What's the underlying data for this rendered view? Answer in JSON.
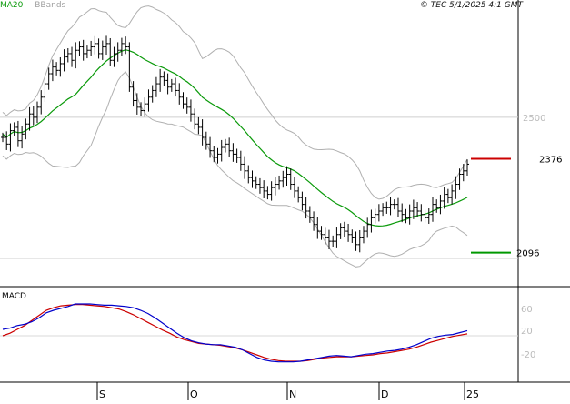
{
  "header": {
    "legend_ma": "MA20",
    "legend_bb": "BBands",
    "copyright": "© TEC 5/1/2025 4:1 GMT"
  },
  "levels": {
    "resistance_label": "2376",
    "support_label": "2096",
    "resistance_color": "#cc0000",
    "support_color": "#009900"
  },
  "colors": {
    "ma": "#0a9a0a",
    "bbands": "#b0b0b0",
    "price": "#000000",
    "macd": "#0000cc",
    "signal": "#cc0000"
  },
  "chart_data": [
    {
      "type": "ohlc",
      "title": "",
      "y_ticks": [
        "2500"
      ],
      "x_ticks": [
        "S",
        "O",
        "N",
        "D",
        "25"
      ],
      "levels": [
        2376,
        2096
      ],
      "series_names": [
        "MA20",
        "BBands"
      ],
      "close": [
        2440,
        2420,
        2460,
        2470,
        2430,
        2450,
        2480,
        2510,
        2500,
        2530,
        2560,
        2600,
        2630,
        2650,
        2640,
        2660,
        2680,
        2690,
        2670,
        2700,
        2710,
        2690,
        2700,
        2710,
        2720,
        2690,
        2710,
        2720,
        2670,
        2690,
        2700,
        2720,
        2710,
        2590,
        2550,
        2530,
        2520,
        2540,
        2560,
        2580,
        2600,
        2620,
        2610,
        2590,
        2600,
        2580,
        2560,
        2540,
        2530,
        2510,
        2480,
        2470,
        2440,
        2420,
        2400,
        2380,
        2390,
        2410,
        2420,
        2400,
        2390,
        2380,
        2360,
        2340,
        2320,
        2310,
        2300,
        2290,
        2280,
        2270,
        2290,
        2300,
        2310,
        2320,
        2330,
        2300,
        2280,
        2260,
        2240,
        2220,
        2200,
        2180,
        2160,
        2150,
        2140,
        2130,
        2130,
        2150,
        2170,
        2160,
        2150,
        2140,
        2120,
        2140,
        2160,
        2180,
        2200,
        2210,
        2220,
        2230,
        2230,
        2240,
        2240,
        2220,
        2210,
        2200,
        2220,
        2230,
        2220,
        2210,
        2200,
        2210,
        2240,
        2230,
        2250,
        2270,
        2260,
        2280,
        2300,
        2330,
        2340,
        2360
      ]
    },
    {
      "type": "line",
      "title": "MACD",
      "y_ticks": [
        "60",
        "20",
        "-20"
      ],
      "series_names": [
        "MACD",
        "Signal"
      ],
      "macd": [
        30,
        32,
        36,
        38,
        42,
        48,
        56,
        60,
        63,
        66,
        70,
        70,
        70,
        69,
        68,
        68,
        67,
        66,
        64,
        60,
        55,
        48,
        40,
        32,
        24,
        17,
        12,
        9,
        7,
        6,
        6,
        4,
        2,
        -2,
        -8,
        -14,
        -18,
        -20,
        -21,
        -21,
        -21,
        -20,
        -18,
        -16,
        -14,
        -12,
        -11,
        -12,
        -13,
        -11,
        -9,
        -8,
        -6,
        -4,
        -3,
        -1,
        2,
        6,
        11,
        16,
        19,
        21,
        22,
        25,
        28
      ],
      "signal": [
        20,
        24,
        30,
        36,
        44,
        52,
        60,
        64,
        67,
        68,
        69,
        69,
        68,
        67,
        66,
        64,
        62,
        58,
        53,
        47,
        41,
        35,
        29,
        24,
        18,
        14,
        11,
        8,
        7,
        6,
        5,
        3,
        1,
        -2,
        -6,
        -10,
        -14,
        -17,
        -19,
        -20,
        -20,
        -20,
        -19,
        -17,
        -15,
        -14,
        -13,
        -13,
        -13,
        -12,
        -11,
        -10,
        -8,
        -7,
        -5,
        -3,
        -1,
        2,
        6,
        10,
        13,
        16,
        19,
        21,
        23
      ]
    }
  ]
}
